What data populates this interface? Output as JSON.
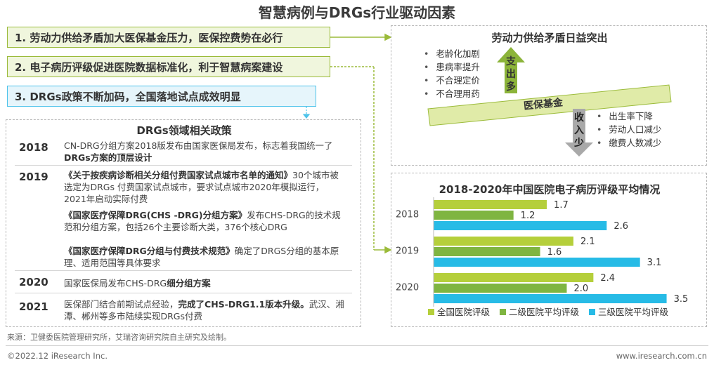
{
  "title": "智慧病例与DRGs行业驱动因素",
  "points": [
    "1. 劳动力供给矛盾加大医保基金压力，医保控费势在必行",
    "2. 电子病历评级促进医院数据标准化，利于智慧病案建设",
    "3. DRGs政策不断加码，全国落地试点成效明显"
  ],
  "policy": {
    "title": "DRGs领域相关政策",
    "rows": [
      {
        "year": "2018",
        "paras": [
          {
            "pre": "CN-DRG分组方案2018版发布由国家医保局发布，标志着我国统一了",
            "bold": "DRGs方案的顶层设计",
            "post": ""
          }
        ]
      },
      {
        "year": "2019",
        "paras": [
          {
            "pre": "",
            "bold": "《关于按疾病诊断相关分组付费国家试点城市名单的通知》",
            "post": "30个城市被选定为DRGs 付费国家试点城市，要求试点城市2020年模拟运行，2021年启动实际付费"
          },
          {
            "pre": "",
            "bold": "《国家医疗保障DRG(CHS -DRG)分组方案》",
            "post": "发布CHS-DRG的技术规范和分组方案，包括26个主要诊断大类，376个核心DRG"
          },
          {
            "pre": "",
            "bold": "《国家医疗保障DRG分组与付费技术规范》",
            "post": "确定了DRGS分组的基本原理、适用范围等具体要求"
          }
        ]
      },
      {
        "year": "2020",
        "paras": [
          {
            "pre": "国家医保局发布CHS-DRG",
            "bold": "细分组方案",
            "post": ""
          }
        ]
      },
      {
        "year": "2021",
        "paras": [
          {
            "pre": "医保部门结合前期试点经验，",
            "bold": "完成了CHS-DRG1.1版本升级。",
            "post": "武汉、湘潭、郴州等多市陆续实现DRGs付费"
          }
        ]
      }
    ]
  },
  "labor": {
    "title": "劳动力供给矛盾日益突出",
    "expense_items": [
      "老龄化加剧",
      "患病率提升",
      "不合理定价",
      "不合理用药"
    ],
    "expense_label": "支出多",
    "fund_label": "医保基金",
    "income_label": "收入少",
    "income_items": [
      "出生率下降",
      "劳动人口减少",
      "缴费人数减少"
    ],
    "colors": {
      "green": "#8cb43a",
      "fund_light": "#e0eba8",
      "gray": "#a9a9a9"
    }
  },
  "chart_data": {
    "type": "bar",
    "orientation": "horizontal",
    "title": "2018-2020年中国医院电子病历评级平均情况",
    "categories": [
      "2018",
      "2019",
      "2020"
    ],
    "series": [
      {
        "name": "全国医院评级",
        "values": [
          1.7,
          2.1,
          2.4
        ],
        "color": "#b5cf3b"
      },
      {
        "name": "二级医院平均评级",
        "values": [
          1.2,
          1.6,
          2.0
        ],
        "color": "#7fb541"
      },
      {
        "name": "三级医院平均评级",
        "values": [
          2.6,
          3.1,
          3.5
        ],
        "color": "#27bbe6"
      }
    ],
    "xlim": [
      0,
      3.8
    ],
    "grid": false,
    "legend": "bottom"
  },
  "source": "来源：卫健委医院管理研究所，艾瑞咨询研究院自主研究及绘制。",
  "footer": {
    "left": "©2022.12 iResearch Inc.",
    "right": "www.iresearch.com.cn"
  }
}
